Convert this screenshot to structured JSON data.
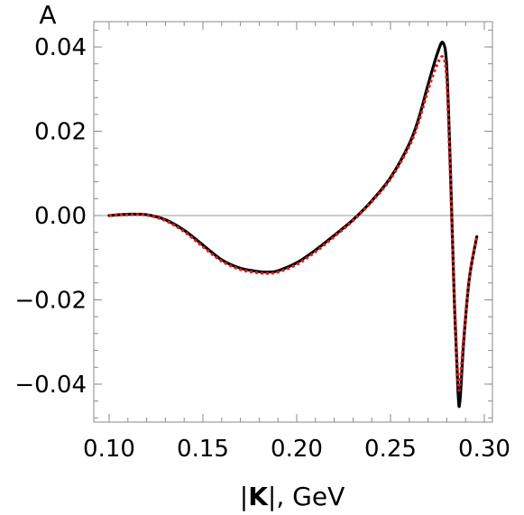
{
  "chart_data": {
    "type": "line",
    "title": "",
    "xlabel": {
      "pre": "|",
      "bold": "K",
      "post": "|, GeV"
    },
    "ylabel": "A",
    "xlim": [
      0.1,
      0.3
    ],
    "ylim": [
      -0.049,
      0.046
    ],
    "x_ticks": [
      0.1,
      0.15,
      0.2,
      0.25,
      0.3
    ],
    "x_tick_labels": [
      "0.10",
      "0.15",
      "0.20",
      "0.25",
      "0.30"
    ],
    "y_ticks": [
      -0.04,
      -0.02,
      0.0,
      0.02,
      0.04
    ],
    "y_tick_labels": [
      "−0.04",
      "−0.02",
      "0.00",
      "0.02",
      "0.04"
    ],
    "zero_line": true,
    "grid": false,
    "series": [
      {
        "style": "solid",
        "color": "#000000",
        "x": [
          0.1,
          0.11,
          0.12,
          0.13,
          0.14,
          0.15,
          0.16,
          0.17,
          0.18,
          0.185,
          0.19,
          0.2,
          0.21,
          0.22,
          0.23,
          0.24,
          0.25,
          0.26,
          0.265,
          0.27,
          0.275,
          0.278,
          0.28,
          0.282,
          0.284,
          0.286,
          0.287,
          0.289,
          0.292,
          0.296
        ],
        "y": [
          0.0,
          0.0003,
          0.0002,
          -0.001,
          -0.0035,
          -0.007,
          -0.0105,
          -0.0125,
          -0.0133,
          -0.0134,
          -0.0131,
          -0.0112,
          -0.0082,
          -0.0047,
          -0.001,
          0.0035,
          0.009,
          0.017,
          0.023,
          0.031,
          0.0385,
          0.041,
          0.035,
          0.01,
          -0.02,
          -0.042,
          -0.044,
          -0.03,
          -0.015,
          -0.005
        ]
      },
      {
        "style": "dotted",
        "color": "#e11b1b",
        "x": [
          0.1,
          0.11,
          0.12,
          0.13,
          0.14,
          0.15,
          0.16,
          0.17,
          0.18,
          0.185,
          0.19,
          0.2,
          0.21,
          0.22,
          0.23,
          0.24,
          0.25,
          0.26,
          0.265,
          0.27,
          0.275,
          0.278,
          0.28,
          0.282,
          0.284,
          0.286,
          0.287,
          0.289,
          0.292,
          0.296
        ],
        "y": [
          0.0,
          0.0002,
          0.0001,
          -0.0012,
          -0.0038,
          -0.0074,
          -0.0108,
          -0.0128,
          -0.0136,
          -0.0137,
          -0.0134,
          -0.0116,
          -0.0086,
          -0.005,
          -0.0012,
          0.0033,
          0.0087,
          0.0165,
          0.0222,
          0.0298,
          0.036,
          0.0375,
          0.032,
          0.008,
          -0.019,
          -0.039,
          -0.04,
          -0.029,
          -0.0148,
          -0.005
        ]
      }
    ]
  }
}
